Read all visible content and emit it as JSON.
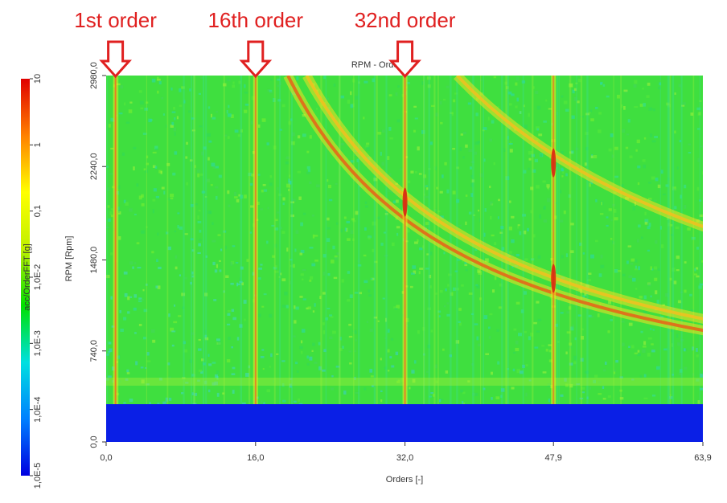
{
  "chart_data": {
    "type": "heatmap",
    "title": "RPM - Order",
    "xlabel": "Orders [-]",
    "ylabel": "RPM [Rpm]",
    "xlim": [
      0.0,
      63.9
    ],
    "ylim": [
      0.0,
      2980.0
    ],
    "x_ticks": [
      "0,0",
      "16,0",
      "32,0",
      "47,9",
      "63,9"
    ],
    "x_tick_values": [
      0.0,
      16.0,
      32.0,
      47.9,
      63.9
    ],
    "y_ticks": [
      "0,0",
      "740,0",
      "1480,0",
      "2240,0",
      "2980,0"
    ],
    "y_tick_values": [
      0.0,
      740.0,
      1480.0,
      2240.0,
      2980.0
    ],
    "colorbar": {
      "label": "acc/OrderFFT [g]",
      "scale": "log",
      "range": [
        1e-05,
        10
      ],
      "ticks": [
        "1,0E-5",
        "1,0E-4",
        "1,0E-3",
        "1,0E-2",
        "0,1",
        "1",
        "10"
      ],
      "colors": [
        "#0000e0",
        "#0080ff",
        "#00e0e0",
        "#00e000",
        "#c0f000",
        "#ffff00",
        "#ff8000",
        "#e00000"
      ]
    },
    "no_data_rpm_below": 320,
    "order_lines": [
      {
        "order": 1.0,
        "strength": 0.85
      },
      {
        "order": 16.0,
        "strength": 0.75
      },
      {
        "order": 32.0,
        "strength": 0.8
      },
      {
        "order": 47.9,
        "strength": 0.6
      }
    ],
    "resonance_curves": [
      {
        "constant": 58000,
        "peak": 0.9
      },
      {
        "constant": 64000,
        "peak": 0.65
      },
      {
        "constant": 112000,
        "peak": 0.55
      }
    ],
    "annotations": [
      {
        "text": "1st order",
        "order": 1.0
      },
      {
        "text": "16th order",
        "order": 16.0
      },
      {
        "text": "32nd order",
        "order": 32.0
      }
    ],
    "annotation_color": "#e02020"
  }
}
